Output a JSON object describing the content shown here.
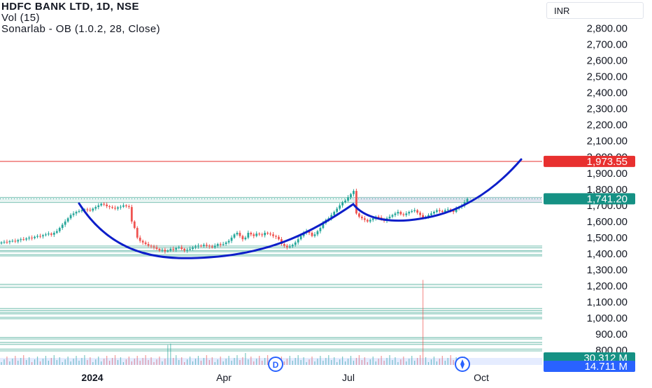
{
  "legend": {
    "title": "HDFC BANK LTD, 1D, NSE",
    "volume": "Vol (15)",
    "indicator": "Sonarlab - OB (1.0.2, 28, Close)"
  },
  "currency": "INR",
  "colors": {
    "up": "#26a69a",
    "down": "#ef5350",
    "pattern": "#0d1ec9",
    "zone_line": "#7fc4b6",
    "resistance": "#e8302f",
    "badge_teal": "#159184",
    "badge_blue": "#2962ff"
  },
  "chart_data": {
    "type": "candlestick",
    "symbol": "HDFC BANK LTD",
    "interval": "1D",
    "exchange": "NSE",
    "y_ticks": [
      "2,800.00",
      "2,700.00",
      "2,600.00",
      "2,500.00",
      "2,400.00",
      "2,300.00",
      "2,200.00",
      "2,100.00",
      "2,000.00",
      "1,900.00",
      "1,800.00",
      "1,700.00",
      "1,600.00",
      "1,500.00",
      "1,400.00",
      "1,300.00",
      "1,200.00",
      "1,100.00",
      "1,000.00",
      "900.00",
      "800.00"
    ],
    "y_tick_values": [
      2800,
      2700,
      2600,
      2500,
      2400,
      2300,
      2200,
      2100,
      2000,
      1900,
      1800,
      1700,
      1600,
      1500,
      1400,
      1300,
      1200,
      1100,
      1000,
      900,
      800
    ],
    "ylim": [
      720,
      2950
    ],
    "x_ticks": [
      "2024",
      "Apr",
      "Jul",
      "Oct"
    ],
    "price_labels": {
      "resistance": "1,973.55",
      "last_price": "1,741.20",
      "volume_1": "30.312 M",
      "volume_2": "14.711 M"
    },
    "resistance_level": 1973.55,
    "last_price": 1741.2,
    "order_block_zones": [
      {
        "top": 1750,
        "bottom": 1718
      },
      {
        "top": 1448,
        "bottom": 1436
      },
      {
        "top": 1420,
        "bottom": 1412
      },
      {
        "top": 1395,
        "bottom": 1386
      },
      {
        "top": 1210,
        "bottom": 1190
      },
      {
        "top": 1060,
        "bottom": 1046
      },
      {
        "top": 1035,
        "bottom": 1026
      },
      {
        "top": 1005,
        "bottom": 996
      },
      {
        "top": 880,
        "bottom": 870
      },
      {
        "top": 850,
        "bottom": 836
      },
      {
        "top": 808,
        "bottom": 796
      }
    ],
    "closes": [
      1470,
      1474,
      1472,
      1478,
      1480,
      1476,
      1485,
      1490,
      1488,
      1495,
      1500,
      1497,
      1505,
      1510,
      1508,
      1515,
      1520,
      1525,
      1518,
      1530,
      1540,
      1560,
      1580,
      1600,
      1620,
      1640,
      1650,
      1660,
      1665,
      1670,
      1675,
      1672,
      1668,
      1680,
      1690,
      1700,
      1710,
      1705,
      1695,
      1690,
      1685,
      1680,
      1688,
      1692,
      1700,
      1695,
      1690,
      1600,
      1560,
      1500,
      1480,
      1470,
      1460,
      1450,
      1445,
      1440,
      1430,
      1420,
      1425,
      1415,
      1420,
      1430,
      1425,
      1435,
      1440,
      1430,
      1420,
      1425,
      1430,
      1440,
      1445,
      1450,
      1448,
      1455,
      1450,
      1445,
      1440,
      1450,
      1460,
      1455,
      1460,
      1470,
      1480,
      1500,
      1520,
      1530,
      1510,
      1490,
      1500,
      1530,
      1520,
      1510,
      1525,
      1520,
      1515,
      1530,
      1525,
      1520,
      1510,
      1505,
      1490,
      1460,
      1450,
      1440,
      1445,
      1455,
      1470,
      1490,
      1510,
      1530,
      1540,
      1530,
      1510,
      1520,
      1540,
      1560,
      1590,
      1610,
      1620,
      1640,
      1660,
      1680,
      1700,
      1720,
      1730,
      1750,
      1770,
      1790,
      1650,
      1630,
      1620,
      1610,
      1600,
      1610,
      1620,
      1630,
      1625,
      1615,
      1605,
      1620,
      1630,
      1640,
      1650,
      1660,
      1645,
      1640,
      1650,
      1660,
      1665,
      1670,
      1655,
      1640,
      1625,
      1630,
      1640,
      1650,
      1660,
      1670,
      1665,
      1660,
      1670,
      1675,
      1668,
      1660,
      1680,
      1690,
      1700,
      1720,
      1741
    ],
    "volume_peaks": [
      {
        "index": 60,
        "value": 0.75
      },
      {
        "index": 61,
        "value": 0.8
      },
      {
        "index": 88,
        "value": 0.45
      },
      {
        "index": 152,
        "value": 3.2
      }
    ]
  },
  "overlay": {
    "volume_badge_icon": "D",
    "cup_and_handle": "pattern-curve"
  }
}
